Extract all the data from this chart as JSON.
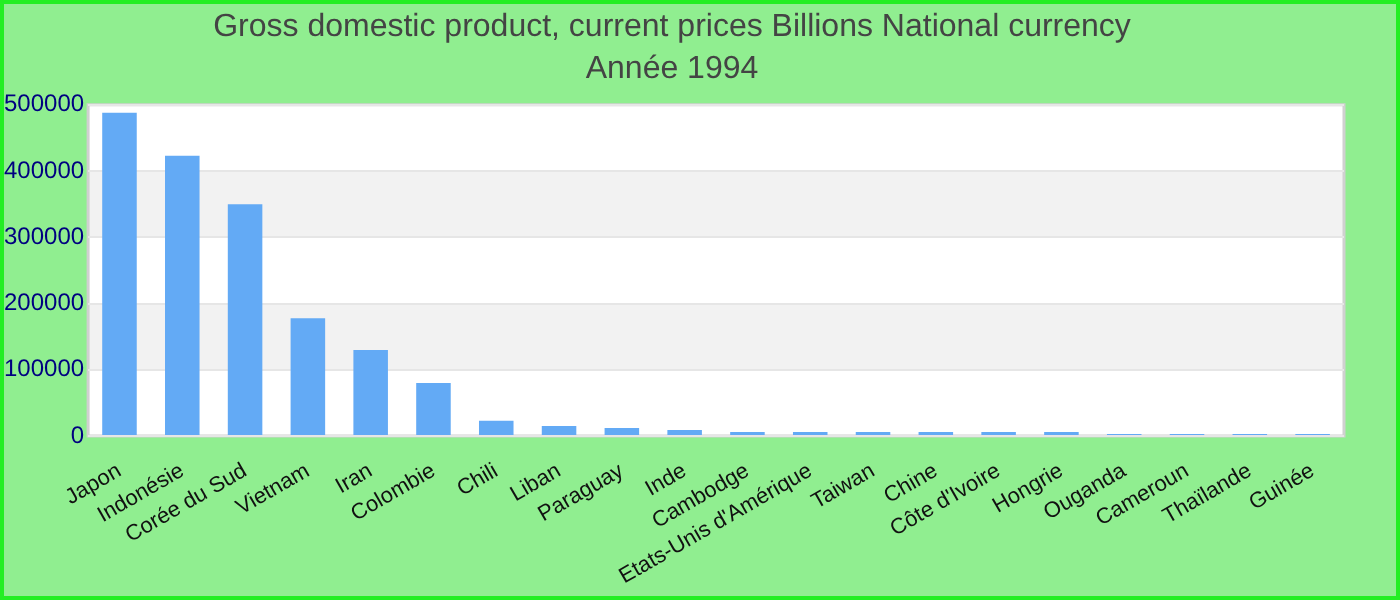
{
  "chart_data": {
    "type": "bar",
    "title": "Gross domestic product, current prices Billions National currency",
    "subtitle": "Année 1994",
    "categories": [
      "Japon",
      "Indonésie",
      "Corée du Sud",
      "Vietnam",
      "Iran",
      "Colombie",
      "Chili",
      "Liban",
      "Paraguay",
      "Inde",
      "Cambodge",
      "Etats-Unis d'Amérique",
      "Taiwan",
      "Chine",
      "Côte d'Ivoire",
      "Hongrie",
      "Ouganda",
      "Cameroun",
      "Thaïlande",
      "Guinée"
    ],
    "values": [
      488000,
      423000,
      350000,
      178000,
      130000,
      80000,
      23000,
      15000,
      12000,
      9000,
      6000,
      6000,
      6000,
      6000,
      6000,
      6000,
      3000,
      3000,
      3000,
      3000
    ],
    "color": "#63aaf5",
    "ylim": [
      0,
      500000
    ],
    "yticks": [
      0,
      100000,
      200000,
      300000,
      400000,
      500000
    ],
    "grid": "y",
    "legend": false
  }
}
